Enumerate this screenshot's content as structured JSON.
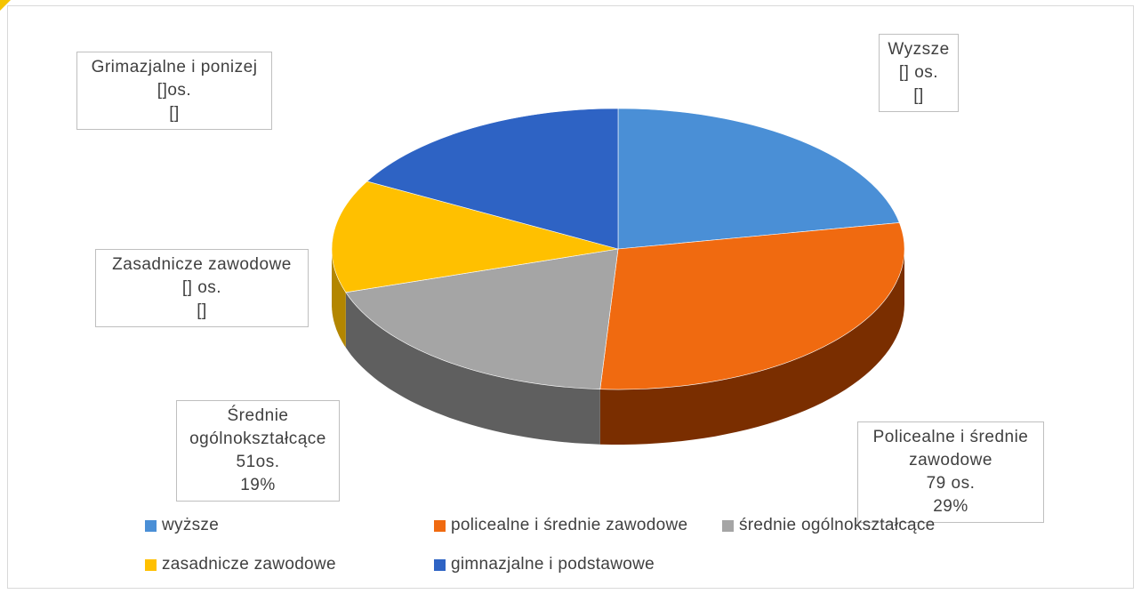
{
  "chart_data": {
    "type": "pie",
    "title": "",
    "style": "3d",
    "slices": [
      {
        "label": "wyższe",
        "color": "#4a8fd6",
        "side_color": "#2f5f94",
        "value": 22
      },
      {
        "label": "policealne i średnie zawodowe",
        "color": "#f06a10",
        "side_color": "#7a2e00",
        "value": 29,
        "count": 79
      },
      {
        "label": "średnie ogólnokształcące",
        "color": "#a5a5a5",
        "side_color": "#5f5f5f",
        "value": 19,
        "count": 51
      },
      {
        "label": "zasadnicze zawodowe",
        "color": "#ffc000",
        "side_color": "#b38600",
        "value": 13
      },
      {
        "label": "gimnazjalne i podstawowe",
        "color": "#2e63c4",
        "side_color": "#1c3f80",
        "value": 17
      }
    ],
    "callouts": [
      {
        "lines": [
          "Wyzsze",
          "[] os.",
          "[]"
        ]
      },
      {
        "lines": [
          "Policealne i średnie",
          "zawodowe",
          "79 os.",
          "29%"
        ]
      },
      {
        "lines": [
          "Średnie",
          "ogólnokształcące",
          "51os.",
          "19%"
        ]
      },
      {
        "lines": [
          "Zasadnicze zawodowe",
          "[] os.",
          "[]"
        ]
      },
      {
        "lines": [
          "Grimazjalne i ponizej",
          "[]os.",
          "[]"
        ]
      }
    ],
    "legend": {
      "position": "bottom",
      "items": [
        {
          "label": "wyższe",
          "color": "#4a8fd6"
        },
        {
          "label": "policealne i średnie zawodowe",
          "color": "#f06a10"
        },
        {
          "label": "średnie ogólnokształcące",
          "color": "#a5a5a5"
        },
        {
          "label": "zasadnicze zawodowe",
          "color": "#ffc000"
        },
        {
          "label": "gimnazjalne i podstawowe",
          "color": "#2e63c4"
        }
      ]
    }
  }
}
